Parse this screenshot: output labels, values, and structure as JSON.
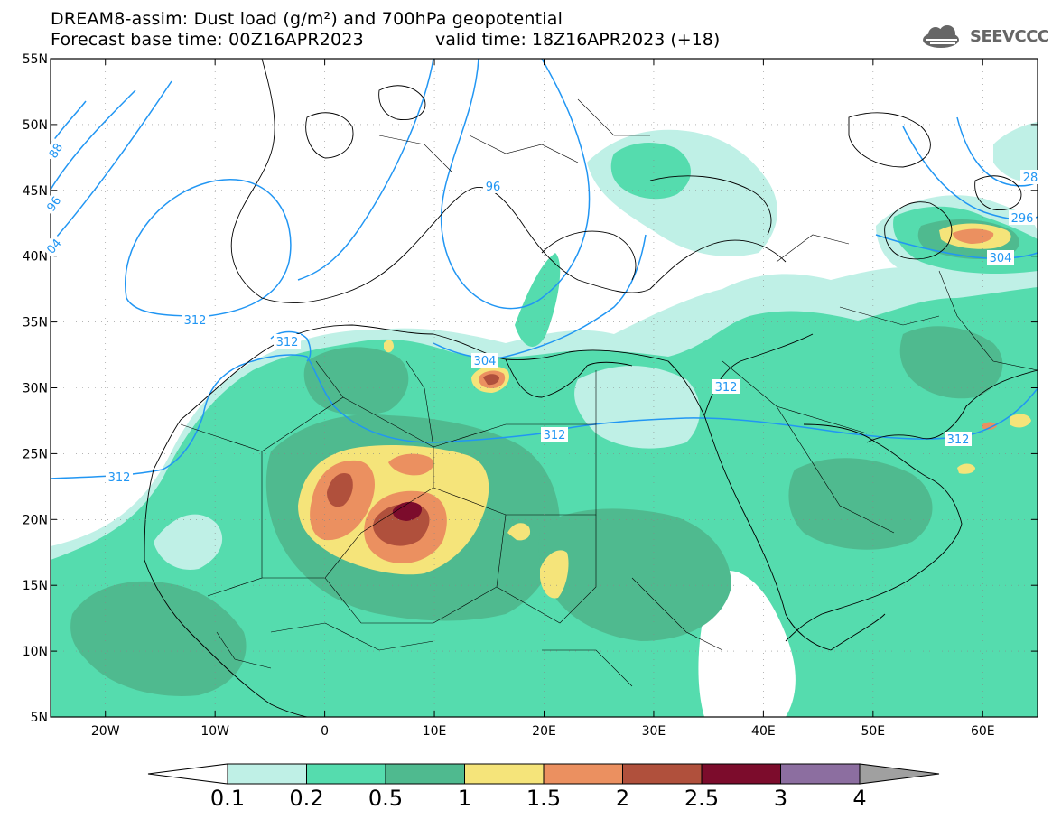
{
  "title": {
    "line1": "DREAM8-assim: Dust load (g/m²) and 700hPa geopotential",
    "base_time": "Forecast base time: 00Z16APR2023",
    "valid_time": "valid time: 18Z16APR2023 (+18)"
  },
  "logo": {
    "text": "SEEVCCC",
    "icon": "cloud-icon"
  },
  "map": {
    "lon_range": [
      -25,
      65
    ],
    "lat_range": [
      5,
      55
    ],
    "lat_ticks": [
      "55N",
      "50N",
      "45N",
      "40N",
      "35N",
      "30N",
      "25N",
      "20N",
      "15N",
      "10N",
      "5N"
    ],
    "lon_ticks": [
      "20W",
      "10W",
      "0",
      "10E",
      "20E",
      "30E",
      "40E",
      "50E",
      "60E"
    ],
    "contour_labels": [
      "88",
      "96",
      "04",
      "312",
      "312",
      "312",
      "304",
      "96",
      "312",
      "312",
      "312",
      "28",
      "296",
      "304"
    ],
    "grid": true
  },
  "colorbar": {
    "labels": [
      "0.1",
      "0.2",
      "0.5",
      "1",
      "1.5",
      "2",
      "2.5",
      "3",
      "4"
    ],
    "colors": [
      "#ffffff",
      "#bff0e6",
      "#55dcae",
      "#4fba8f",
      "#f5e47a",
      "#eb9060",
      "#b0503c",
      "#7c0c2c",
      "#8c6ea0",
      "#a0a0a0"
    ]
  }
}
